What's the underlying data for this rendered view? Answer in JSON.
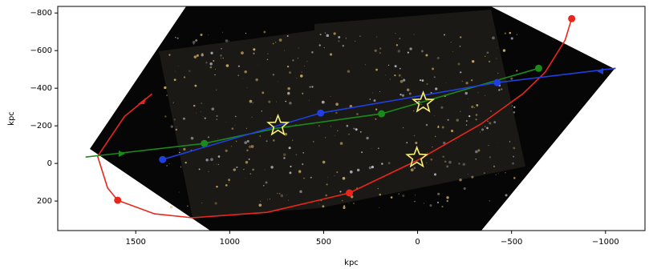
{
  "chart_data": {
    "type": "line",
    "x_label": "kpc",
    "y_label": "kpc",
    "xlim": [
      1915,
      -1210
    ],
    "ylim": [
      357,
      -835
    ],
    "xticks": [
      1500,
      1000,
      500,
      0,
      {
        "value": -500,
        "label": "−500"
      },
      {
        "value": -1000,
        "label": "−1000"
      }
    ],
    "yticks": [
      {
        "value": -800,
        "label": "−800"
      },
      {
        "value": -600,
        "label": "−600"
      },
      {
        "value": -400,
        "label": "−400"
      },
      {
        "value": -200,
        "label": "−200"
      },
      0,
      200
    ],
    "series": [
      {
        "color": "#e8261b",
        "x": [
          1413,
          1560,
          1703,
          1650,
          1596,
          1400,
          1199,
          800,
          363,
          0,
          -337,
          -560,
          -679,
          -785,
          -820
        ],
        "values": [
          -370,
          -250,
          -38,
          130,
          196,
          268,
          289,
          260,
          157,
          -17,
          -209,
          -370,
          -485,
          -655,
          -770
        ],
        "marker_x": [
          1596,
          363,
          -820
        ],
        "marker_values": [
          196,
          157,
          -770
        ]
      },
      {
        "color": "#1a8a1a",
        "x": [
          1767,
          1135,
          751,
          192,
          -644
        ],
        "values": [
          -34,
          -106,
          -187,
          -264,
          -506
        ],
        "marker_x": [
          1135,
          192,
          -644
        ],
        "marker_values": [
          -106,
          -264,
          -506
        ]
      },
      {
        "color": "#1f3fe0",
        "x": [
          1357,
          516,
          -423,
          -1054
        ],
        "values": [
          -21,
          -268,
          -430,
          -506
        ],
        "marker_x": [
          1357,
          516,
          -423
        ],
        "marker_values": [
          -21,
          -268,
          -430
        ]
      }
    ],
    "stars": {
      "color": "#f7f07a",
      "x": [
        743,
        -30,
        4
      ],
      "values": [
        -200,
        -323,
        -30
      ]
    }
  }
}
